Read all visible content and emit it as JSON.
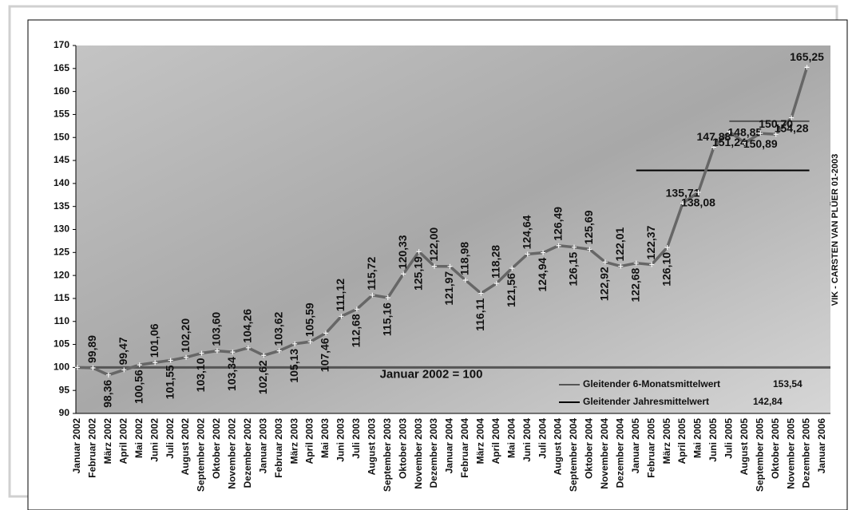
{
  "chart_data": {
    "type": "line",
    "categories": [
      "Januar 2002",
      "Februar 2002",
      "März 2002",
      "April 2002",
      "Mai 2002",
      "Juni 2002",
      "Juli 2002",
      "August 2002",
      "September 2002",
      "Oktober 2002",
      "November 2002",
      "Dezember 2002",
      "Januar 2003",
      "Februar 2003",
      "März 2003",
      "April 2003",
      "Mai 2003",
      "Juni 2003",
      "Juli 2003",
      "August 2003",
      "September 2003",
      "Oktober 2003",
      "November 2003",
      "Dezember 2003",
      "Januar 2004",
      "Februar 2004",
      "März 2004",
      "April 2004",
      "Mai 2004",
      "Juni 2004",
      "Juli 2004",
      "August 2004",
      "September 2004",
      "Oktober 2004",
      "November 2004",
      "Dezember 2004",
      "Januar 2005",
      "Februar 2005",
      "März 2005",
      "April 2005",
      "Mai 2005",
      "Juni 2005",
      "Juli 2005",
      "August 2005",
      "September 2005",
      "Oktober 2005",
      "November 2005",
      "Dezember 2005",
      "Januar 2006"
    ],
    "values": [
      100,
      99.89,
      98.36,
      99.47,
      100.56,
      101.06,
      101.55,
      102.2,
      103.1,
      103.6,
      103.34,
      104.26,
      102.62,
      103.62,
      105.13,
      105.59,
      107.46,
      111.12,
      112.68,
      115.72,
      115.16,
      120.33,
      125.19,
      122.0,
      121.97,
      118.98,
      116.11,
      118.28,
      121.56,
      124.64,
      124.94,
      126.49,
      126.15,
      125.69,
      122.92,
      122.01,
      122.68,
      122.37,
      126.1,
      135.71,
      138.08,
      147.88,
      151.24,
      148.85,
      150.89,
      150.7,
      154.28,
      165.25,
      null
    ],
    "value_labels": [
      null,
      "99,89",
      "98,36",
      "99,47",
      "100,56",
      "101,06",
      "101,55",
      "102,20",
      "103,10",
      "103,60",
      "103,34",
      "104,26",
      "102,62",
      "103,62",
      "105,13",
      "105,59",
      "107,46",
      "111,12",
      "112,68",
      "115,72",
      "115,16",
      "120,33",
      "125,19",
      "122,00",
      "121,97",
      "118,98",
      "116,11",
      "118,28",
      "121,56",
      "124,64",
      "124,94",
      "126,49",
      "126,15",
      "125,69",
      "122,92",
      "122,01",
      "122,68",
      "122,37",
      "126,10",
      "135,71",
      "138,08",
      "147,88",
      "151,24",
      "148,85",
      "150,89",
      "150,70",
      "154,28",
      "165,25",
      null
    ],
    "color": "#666666",
    "ylim": [
      90,
      170
    ],
    "yticks": [
      90,
      95,
      100,
      105,
      110,
      115,
      120,
      125,
      130,
      135,
      140,
      145,
      150,
      155,
      160,
      165,
      170
    ],
    "baseline": {
      "label": "Januar 2002 = 100",
      "value": 100
    },
    "reference_lines": [
      {
        "name": "Gleitender 6-Monatsmittelwert",
        "value": 153.54,
        "value_label": "153,54",
        "from": "Juli 2005",
        "to": "Dezember 2005",
        "color": "#555555"
      },
      {
        "name": "Gleitender Jahresmittelwert",
        "value": 142.84,
        "value_label": "142,84",
        "from": "Januar 2005",
        "to": "Dezember 2005",
        "color": "#000000"
      }
    ],
    "source": "VIK - CARSTEN VAN PLÜER 01-2003"
  }
}
